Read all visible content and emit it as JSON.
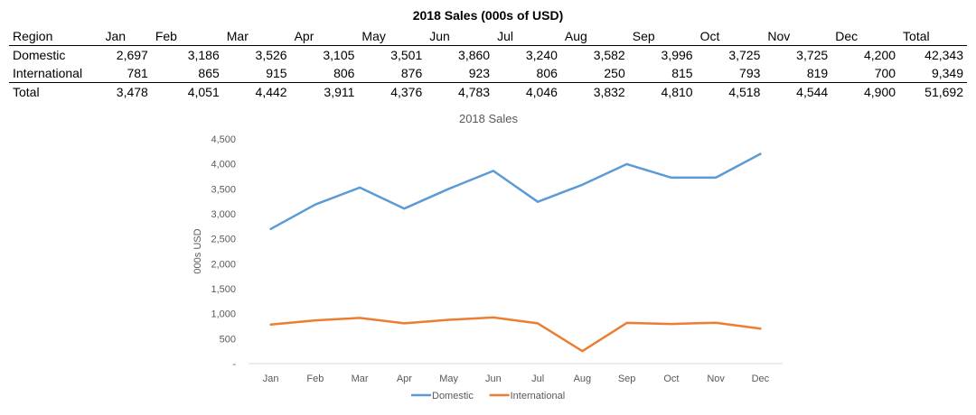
{
  "table": {
    "title": "2018 Sales (000s of USD)",
    "headers": [
      "Region",
      "Jan",
      "Feb",
      "Mar",
      "Apr",
      "May",
      "Jun",
      "Jul",
      "Aug",
      "Sep",
      "Oct",
      "Nov",
      "Dec",
      "Total"
    ],
    "rows": [
      {
        "label": "Domestic",
        "cells": [
          "2,697",
          "3,186",
          "3,526",
          "3,105",
          "3,501",
          "3,860",
          "3,240",
          "3,582",
          "3,996",
          "3,725",
          "3,725",
          "4,200",
          "42,343"
        ]
      },
      {
        "label": "International",
        "cells": [
          "781",
          "865",
          "915",
          "806",
          "876",
          "923",
          "806",
          "250",
          "815",
          "793",
          "819",
          "700",
          "9,349"
        ]
      },
      {
        "label": "Total",
        "cells": [
          "3,478",
          "4,051",
          "4,442",
          "3,911",
          "4,376",
          "4,783",
          "4,046",
          "3,832",
          "4,810",
          "4,518",
          "4,544",
          "4,900",
          "51,692"
        ]
      }
    ]
  },
  "chart_data": {
    "type": "line",
    "title": "2018 Sales",
    "xlabel": "",
    "ylabel": "000s USD",
    "categories": [
      "Jan",
      "Feb",
      "Mar",
      "Apr",
      "May",
      "Jun",
      "Jul",
      "Aug",
      "Sep",
      "Oct",
      "Nov",
      "Dec"
    ],
    "ylim": [
      0,
      4500
    ],
    "yticks": [
      0,
      500,
      1000,
      1500,
      2000,
      2500,
      3000,
      3500,
      4000,
      4500
    ],
    "ytick_labels": [
      "-",
      "500",
      "1,000",
      "1,500",
      "2,000",
      "2,500",
      "3,000",
      "3,500",
      "4,000",
      "4,500"
    ],
    "grid": false,
    "legend": "bottom",
    "series": [
      {
        "name": "Domestic",
        "color": "#5B9BD5",
        "values": [
          2697,
          3186,
          3526,
          3105,
          3501,
          3860,
          3240,
          3582,
          3996,
          3725,
          3725,
          4200
        ]
      },
      {
        "name": "International",
        "color": "#ED7D31",
        "values": [
          781,
          865,
          915,
          806,
          876,
          923,
          806,
          250,
          815,
          793,
          819,
          700
        ]
      }
    ]
  }
}
